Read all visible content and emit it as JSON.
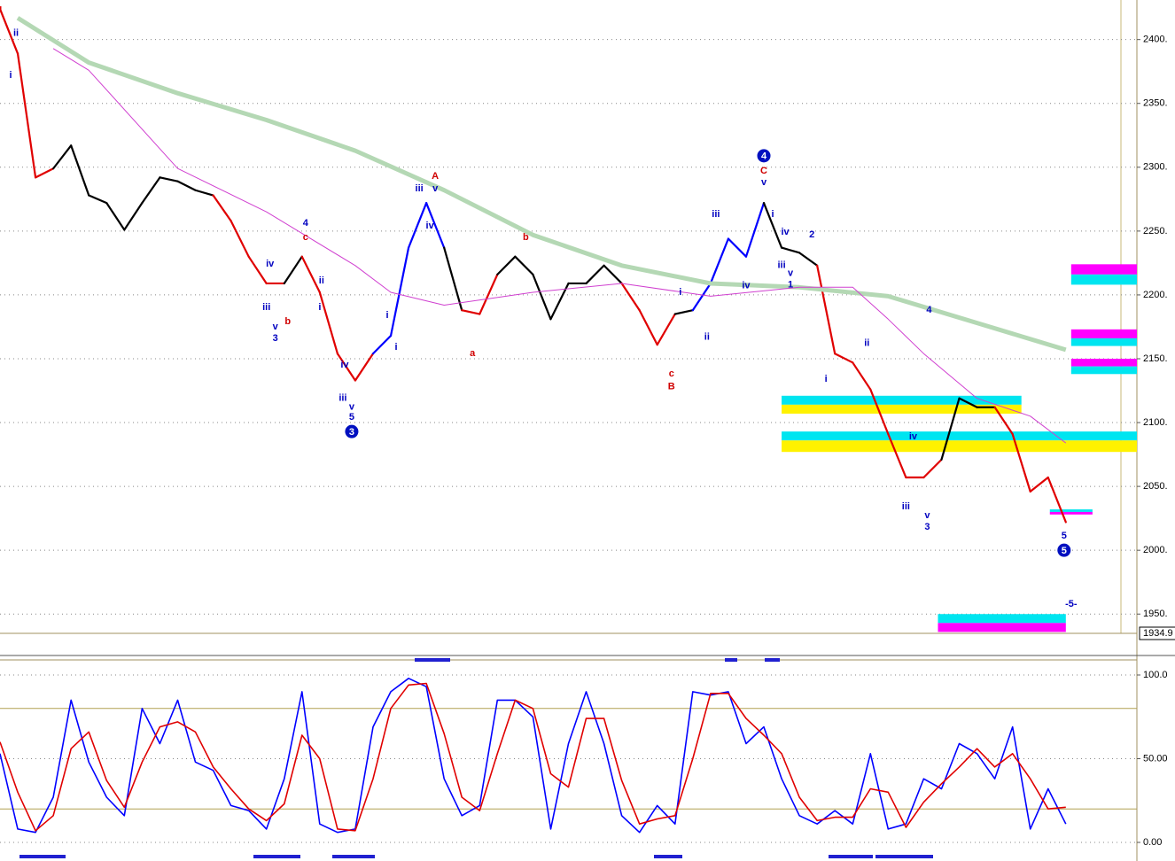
{
  "chart_data": [
    {
      "type": "line",
      "xlim": [
        0,
        64
      ],
      "ylim": [
        1934.9,
        2431
      ],
      "grid": true,
      "yticks": [
        {
          "value": 1950,
          "label": "1950."
        },
        {
          "value": 2000,
          "label": "2000."
        },
        {
          "value": 2050,
          "label": "2050."
        },
        {
          "value": 2100,
          "label": "2100."
        },
        {
          "value": 2150,
          "label": "2150."
        },
        {
          "value": 2200,
          "label": "2200."
        },
        {
          "value": 2250,
          "label": "2250."
        },
        {
          "value": 2300,
          "label": "2300."
        },
        {
          "value": 2350,
          "label": "2350."
        },
        {
          "value": 2400,
          "label": "2400."
        }
      ],
      "marker": {
        "value": 1934.9,
        "label": "1934.9"
      },
      "series": [
        {
          "x": [
            0,
            1,
            2,
            3,
            4,
            5,
            6,
            7,
            8,
            9,
            10,
            11,
            12,
            13,
            14,
            15,
            16,
            17,
            18,
            19,
            20,
            21,
            22,
            23,
            24,
            25,
            26,
            27,
            28,
            29,
            30,
            31,
            32,
            33,
            34,
            35,
            36,
            37,
            38,
            39,
            40,
            41,
            42,
            43,
            44,
            45,
            46,
            47,
            48,
            49,
            50,
            51,
            52,
            53,
            54,
            55,
            56,
            57,
            58,
            59,
            60
          ],
          "values": [
            2424,
            2389,
            2292,
            2299,
            2317,
            2278,
            2272,
            2251,
            2272,
            2292,
            2289,
            2282,
            2278,
            2258,
            2230,
            2209,
            2209,
            2230,
            2202,
            2154,
            2133,
            2154,
            2168,
            2237,
            2272,
            2237,
            2188,
            2185,
            2216,
            2230,
            2216,
            2181,
            2209,
            2209,
            2223,
            2209,
            2188,
            2161,
            2185,
            2188,
            2209,
            2244,
            2230,
            2272,
            2237,
            2233,
            2223,
            2154,
            2147,
            2126,
            2091,
            2057,
            2057,
            2071,
            2119,
            2112,
            2112,
            2091,
            2046,
            2057,
            2022
          ],
          "colors": [
            "#e00000",
            "#e00000",
            "#e00000",
            "#e00000",
            "#000000",
            "#000000",
            "#000000",
            "#000000",
            "#000000",
            "#000000",
            "#000000",
            "#000000",
            "#000000",
            "#e00000",
            "#e00000",
            "#e00000",
            "#e00000",
            "#000000",
            "#e00000",
            "#e00000",
            "#e00000",
            "#e00000",
            "#0000ff",
            "#0000ff",
            "#0000ff",
            "#0000ff",
            "#000000",
            "#e00000",
            "#e00000",
            "#000000",
            "#000000",
            "#000000",
            "#000000",
            "#000000",
            "#000000",
            "#000000",
            "#e00000",
            "#e00000",
            "#e00000",
            "#000000",
            "#0000ff",
            "#0000ff",
            "#0000ff",
            "#0000ff",
            "#000000",
            "#000000",
            "#000000",
            "#e00000",
            "#e00000",
            "#e00000",
            "#e00000",
            "#e00000",
            "#e00000",
            "#e00000",
            "#000000",
            "#000000",
            "#000000",
            "#e00000",
            "#e00000",
            "#e00000",
            "#e00000"
          ]
        },
        {
          "color": "#b4d8b4",
          "width": 5,
          "x": [
            1,
            5,
            10,
            15,
            20,
            25,
            30,
            35,
            40,
            45,
            50,
            55,
            60
          ],
          "values": [
            2417,
            2382,
            2358,
            2337,
            2313,
            2282,
            2247,
            2223,
            2209,
            2206,
            2199,
            2178,
            2157
          ]
        },
        {
          "color": "#d040d0",
          "width": 1,
          "x": [
            3,
            5,
            10,
            15,
            20,
            22,
            25,
            30,
            35,
            40,
            45,
            48,
            50,
            52,
            55,
            58,
            60
          ],
          "values": [
            2393,
            2376,
            2299,
            2265,
            2223,
            2202,
            2192,
            2202,
            2209,
            2199,
            2206,
            2206,
            2181,
            2154,
            2119,
            2105,
            2084
          ]
        }
      ],
      "zones": [
        {
          "x": [
            44,
            57.5
          ],
          "y": [
            2114,
            2121
          ],
          "color": "#00e5f0"
        },
        {
          "x": [
            44,
            57.5
          ],
          "y": [
            2107,
            2114
          ],
          "color": "#fff200"
        },
        {
          "x": [
            44,
            64
          ],
          "y": [
            2086,
            2093
          ],
          "color": "#00e5f0"
        },
        {
          "x": [
            44,
            64
          ],
          "y": [
            2077,
            2086
          ],
          "color": "#fff200"
        },
        {
          "x": [
            60.3,
            64
          ],
          "y": [
            2216,
            2224
          ],
          "color": "#ff00ff"
        },
        {
          "x": [
            60.3,
            64
          ],
          "y": [
            2208,
            2216
          ],
          "color": "#00e5f0"
        },
        {
          "x": [
            60.3,
            64
          ],
          "y": [
            2166,
            2173
          ],
          "color": "#ff00ff"
        },
        {
          "x": [
            60.3,
            64
          ],
          "y": [
            2160,
            2166
          ],
          "color": "#00e5f0"
        },
        {
          "x": [
            60.3,
            64
          ],
          "y": [
            2144,
            2150
          ],
          "color": "#ff00ff"
        },
        {
          "x": [
            60.3,
            64
          ],
          "y": [
            2138,
            2144
          ],
          "color": "#00e5f0"
        },
        {
          "x": [
            52.8,
            60
          ],
          "y": [
            1943,
            1950
          ],
          "color": "#00e5f0"
        },
        {
          "x": [
            52.8,
            60
          ],
          "y": [
            1936,
            1943
          ],
          "color": "#ff00ff"
        },
        {
          "x": [
            59.1,
            61.5
          ],
          "y": [
            2030,
            2032
          ],
          "color": "#00e5f0"
        },
        {
          "x": [
            59.1,
            61.5
          ],
          "y": [
            2028,
            2030
          ],
          "color": "#ff00ff"
        }
      ],
      "annotations": [
        {
          "text": "ii",
          "x": 0.9,
          "y": 2405,
          "color": "#0000c0"
        },
        {
          "text": "i",
          "x": 0.6,
          "y": 2372,
          "color": "#0000c0"
        },
        {
          "text": "iii",
          "x": 15,
          "y": 2190,
          "color": "#0000c0"
        },
        {
          "text": "iv",
          "x": 15.2,
          "y": 2224,
          "color": "#0000c0"
        },
        {
          "text": "v",
          "x": 15.5,
          "y": 2175,
          "color": "#0000c0"
        },
        {
          "text": "3",
          "x": 15.5,
          "y": 2166,
          "color": "#0000c0"
        },
        {
          "text": "b",
          "x": 16.2,
          "y": 2179,
          "color": "#d00000"
        },
        {
          "text": "4",
          "x": 17.2,
          "y": 2256,
          "color": "#0000c0"
        },
        {
          "text": "c",
          "x": 17.2,
          "y": 2245,
          "color": "#d00000"
        },
        {
          "text": "ii",
          "x": 18.1,
          "y": 2211,
          "color": "#0000c0"
        },
        {
          "text": "i",
          "x": 18,
          "y": 2190,
          "color": "#0000c0"
        },
        {
          "text": "iv",
          "x": 19.4,
          "y": 2145,
          "color": "#0000c0"
        },
        {
          "text": "iii",
          "x": 19.3,
          "y": 2119,
          "color": "#0000c0"
        },
        {
          "text": "v",
          "x": 19.8,
          "y": 2112,
          "color": "#0000c0"
        },
        {
          "text": "5",
          "x": 19.8,
          "y": 2104,
          "color": "#0000c0"
        },
        {
          "text": "3",
          "x": 19.8,
          "y": 2093,
          "color": "#0000c0",
          "circled": true
        },
        {
          "text": "i",
          "x": 21.8,
          "y": 2184,
          "color": "#0000c0"
        },
        {
          "text": "i",
          "x": 22.3,
          "y": 2159,
          "color": "#0000c0"
        },
        {
          "text": "iii",
          "x": 23.6,
          "y": 2283,
          "color": "#0000c0"
        },
        {
          "text": "v",
          "x": 24.5,
          "y": 2283,
          "color": "#0000c0"
        },
        {
          "text": "A",
          "x": 24.5,
          "y": 2293,
          "color": "#d00000"
        },
        {
          "text": "iv",
          "x": 24.2,
          "y": 2254,
          "color": "#0000c0"
        },
        {
          "text": "a",
          "x": 26.6,
          "y": 2154,
          "color": "#d00000"
        },
        {
          "text": "b",
          "x": 29.6,
          "y": 2245,
          "color": "#d00000"
        },
        {
          "text": "i",
          "x": 38.3,
          "y": 2202,
          "color": "#0000c0"
        },
        {
          "text": "ii",
          "x": 39.8,
          "y": 2167,
          "color": "#0000c0"
        },
        {
          "text": "c",
          "x": 37.8,
          "y": 2138,
          "color": "#d00000"
        },
        {
          "text": "B",
          "x": 37.8,
          "y": 2128,
          "color": "#d00000"
        },
        {
          "text": "iii",
          "x": 40.3,
          "y": 2263,
          "color": "#0000c0"
        },
        {
          "text": "iv",
          "x": 42,
          "y": 2207,
          "color": "#0000c0"
        },
        {
          "text": "4",
          "x": 43,
          "y": 2309,
          "color": "#0000c0",
          "circled": true
        },
        {
          "text": "C",
          "x": 43,
          "y": 2297,
          "color": "#d00000"
        },
        {
          "text": "v",
          "x": 43,
          "y": 2288,
          "color": "#0000c0"
        },
        {
          "text": "i",
          "x": 43.5,
          "y": 2263,
          "color": "#0000c0"
        },
        {
          "text": "iv",
          "x": 44.2,
          "y": 2249,
          "color": "#0000c0"
        },
        {
          "text": "iii",
          "x": 44,
          "y": 2223,
          "color": "#0000c0"
        },
        {
          "text": "v",
          "x": 44.5,
          "y": 2217,
          "color": "#0000c0"
        },
        {
          "text": "1",
          "x": 44.5,
          "y": 2208,
          "color": "#0000c0"
        },
        {
          "text": "2",
          "x": 45.7,
          "y": 2247,
          "color": "#0000c0"
        },
        {
          "text": "ii",
          "x": 48.8,
          "y": 2162,
          "color": "#0000c0"
        },
        {
          "text": "i",
          "x": 46.5,
          "y": 2134,
          "color": "#0000c0"
        },
        {
          "text": "4",
          "x": 52.3,
          "y": 2188,
          "color": "#0000c0"
        },
        {
          "text": "iv",
          "x": 51.4,
          "y": 2089,
          "color": "#0000c0"
        },
        {
          "text": "iii",
          "x": 51,
          "y": 2034,
          "color": "#0000c0"
        },
        {
          "text": "v",
          "x": 52.2,
          "y": 2027,
          "color": "#0000c0"
        },
        {
          "text": "3",
          "x": 52.2,
          "y": 2018,
          "color": "#0000c0"
        },
        {
          "text": "5",
          "x": 59.9,
          "y": 2011,
          "color": "#0000c0"
        },
        {
          "text": "5",
          "x": 59.9,
          "y": 2000,
          "color": "#0000c0",
          "circled": true
        },
        {
          "text": "-5-",
          "x": 60.3,
          "y": 1957.7,
          "color": "#0000c0"
        }
      ]
    },
    {
      "type": "line",
      "xlim": [
        0,
        64
      ],
      "ylim": [
        -9,
        109
      ],
      "grid": true,
      "yticks": [
        {
          "value": 0,
          "label": "0.00"
        },
        {
          "value": 50,
          "label": "50.00"
        },
        {
          "value": 100,
          "label": "100.0"
        }
      ],
      "levels": [
        20,
        80
      ],
      "x": [
        0,
        1,
        2,
        3,
        4,
        5,
        6,
        7,
        8,
        9,
        10,
        11,
        12,
        13,
        14,
        15,
        16,
        17,
        18,
        19,
        20,
        21,
        22,
        23,
        24,
        25,
        26,
        27,
        28,
        29,
        30,
        31,
        32,
        33,
        34,
        35,
        36,
        37,
        38,
        39,
        40,
        41,
        42,
        43,
        44,
        45,
        46,
        47,
        48,
        49,
        50,
        51,
        52,
        53,
        54,
        55,
        56,
        57,
        58,
        59,
        60
      ],
      "series": [
        {
          "color": "#0000ff",
          "values": [
            53,
            8,
            6,
            27,
            85,
            48,
            27,
            16,
            80,
            59,
            85,
            48,
            43,
            22,
            19,
            8,
            38,
            90,
            11,
            6,
            8,
            69,
            90,
            98,
            93,
            38,
            16,
            22,
            85,
            85,
            75,
            8,
            59,
            90,
            59,
            16,
            6,
            22,
            11,
            90,
            88,
            90,
            59,
            69,
            38,
            16,
            11,
            19,
            11,
            53,
            8,
            11,
            38,
            32,
            59,
            53,
            38,
            69,
            8,
            32,
            11
          ]
        },
        {
          "color": "#e00000",
          "values": [
            60,
            30,
            7,
            16,
            56,
            66,
            37,
            21,
            48,
            69,
            72,
            66,
            45,
            32,
            20,
            13,
            23,
            64,
            50,
            8,
            7,
            38,
            80,
            94,
            95,
            65,
            27,
            19,
            53,
            85,
            80,
            41,
            33,
            74,
            74,
            37,
            11,
            14,
            16,
            50,
            89,
            89,
            74,
            64,
            53,
            27,
            13,
            15,
            15,
            32,
            30,
            9,
            24,
            35,
            45,
            56,
            45,
            53,
            38,
            20,
            21
          ]
        }
      ]
    }
  ]
}
